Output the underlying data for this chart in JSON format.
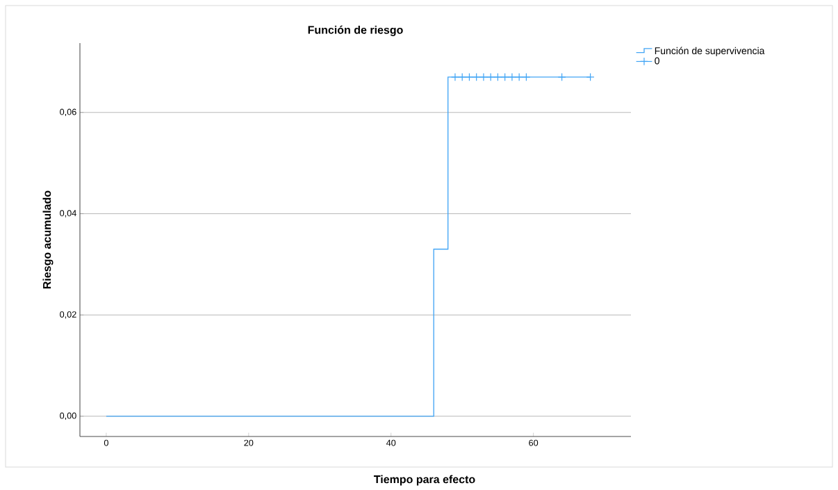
{
  "chart_data": {
    "type": "step",
    "title": "Función de riesgo",
    "xlabel": "Tiempo para efecto",
    "ylabel": "Riesgo acumulado",
    "xlim": [
      -3.7,
      73.7
    ],
    "ylim": [
      -0.004,
      0.0737
    ],
    "xticks": [
      0,
      20,
      40,
      60
    ],
    "yticks": [
      {
        "value": 0,
        "label": "0,00"
      },
      {
        "value": 0.02,
        "label": "0,02"
      },
      {
        "value": 0.04,
        "label": "0,04"
      },
      {
        "value": 0.06,
        "label": "0,06"
      }
    ],
    "grid": "y",
    "legend": "top right",
    "series": [
      {
        "name": "Función de supervivencia",
        "color": "#42a5f5",
        "x": [
          0,
          46,
          48,
          68
        ],
        "values": [
          0,
          0.033,
          0.067,
          0.067
        ]
      },
      {
        "name": "0",
        "type": "scatter",
        "marker": "cross",
        "color": "#42a5f5",
        "x": [
          49,
          50,
          51,
          52,
          53,
          54,
          55,
          56,
          57,
          58,
          59,
          64,
          68
        ],
        "values": [
          0.067,
          0.067,
          0.067,
          0.067,
          0.067,
          0.067,
          0.067,
          0.067,
          0.067,
          0.067,
          0.067,
          0.067,
          0.067
        ]
      }
    ]
  }
}
